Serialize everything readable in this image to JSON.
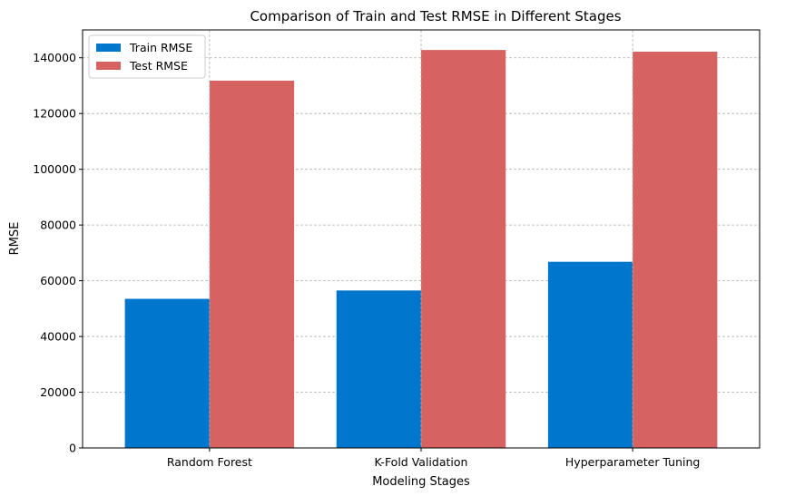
{
  "chart_data": {
    "type": "bar",
    "title": "Comparison of Train and Test RMSE in Different Stages",
    "xlabel": "Modeling Stages",
    "ylabel": "RMSE",
    "categories": [
      "Random Forest",
      "K-Fold Validation",
      "Hyperparameter Tuning"
    ],
    "series": [
      {
        "name": "Train RMSE",
        "color": "#0077cc",
        "values": [
          53500,
          56500,
          66800
        ]
      },
      {
        "name": "Test RMSE",
        "color": "#d66262",
        "values": [
          131800,
          142800,
          142200
        ]
      }
    ],
    "ylim": [
      0,
      150000
    ],
    "yticks": [
      0,
      20000,
      40000,
      60000,
      80000,
      100000,
      120000,
      140000
    ],
    "ytick_labels": [
      "0",
      "20000",
      "40000",
      "60000",
      "80000",
      "100000",
      "120000",
      "140000"
    ],
    "grid": true,
    "legend_position": "top-left"
  }
}
